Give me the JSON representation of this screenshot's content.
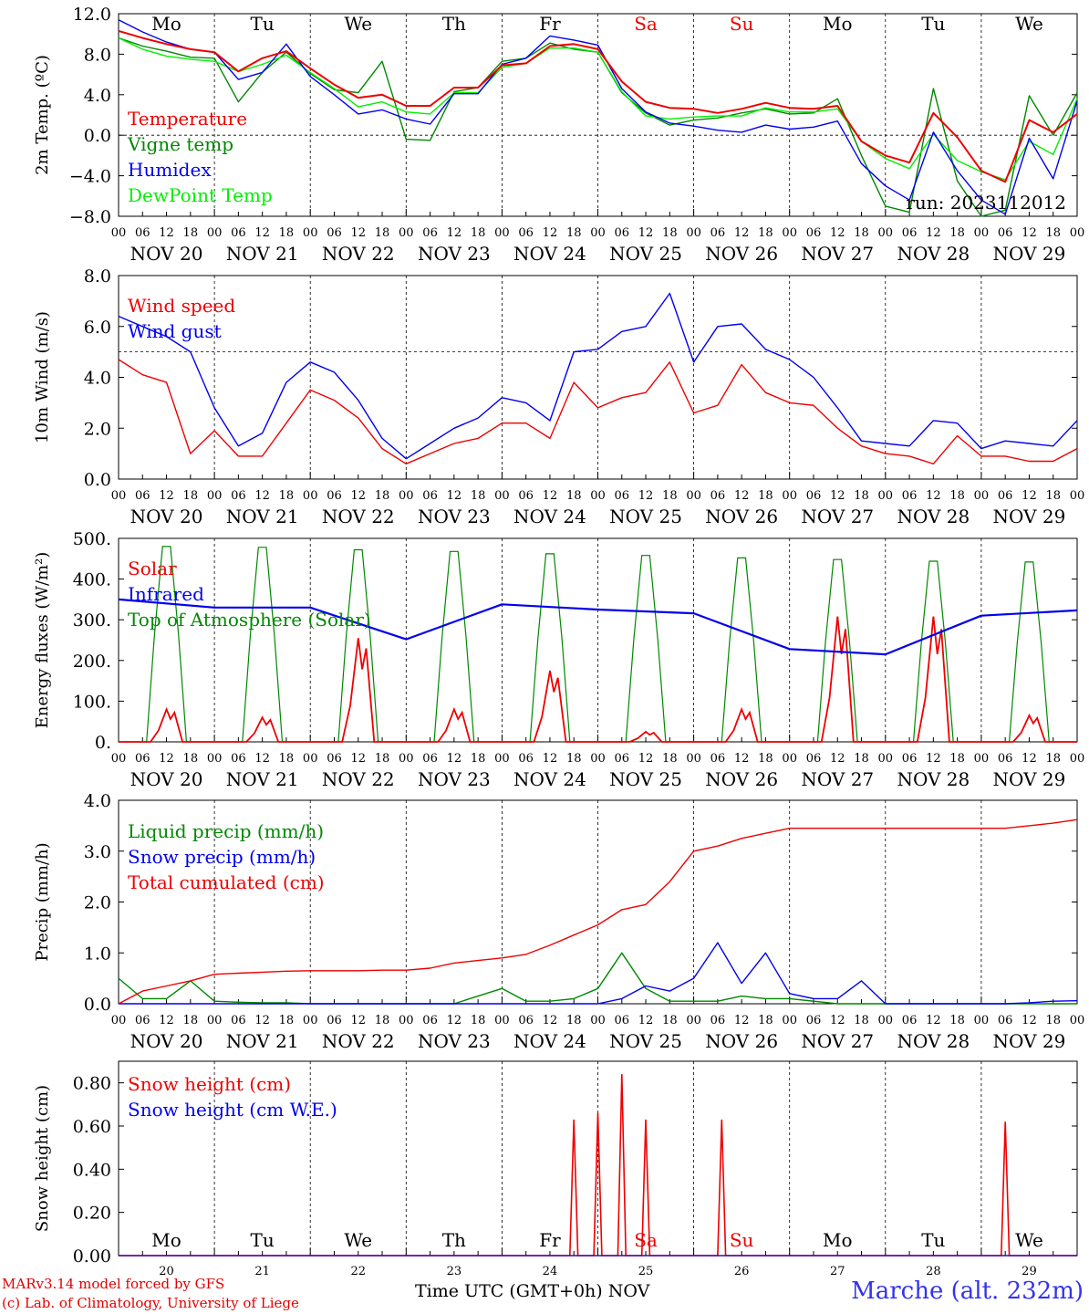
{
  "days": [
    {
      "dow": "Mo",
      "dow_color": "#000000",
      "label": "NOV 20",
      "num": "20"
    },
    {
      "dow": "Tu",
      "dow_color": "#000000",
      "label": "NOV 21",
      "num": "21"
    },
    {
      "dow": "We",
      "dow_color": "#000000",
      "label": "NOV 22",
      "num": "22"
    },
    {
      "dow": "Th",
      "dow_color": "#000000",
      "label": "NOV 23",
      "num": "23"
    },
    {
      "dow": "Fr",
      "dow_color": "#000000",
      "label": "NOV 24",
      "num": "24"
    },
    {
      "dow": "Sa",
      "dow_color": "#ee0000",
      "label": "NOV 25",
      "num": "25"
    },
    {
      "dow": "Su",
      "dow_color": "#ee0000",
      "label": "NOV 26",
      "num": "26"
    },
    {
      "dow": "Mo",
      "dow_color": "#000000",
      "label": "NOV 27",
      "num": "27"
    },
    {
      "dow": "Tu",
      "dow_color": "#000000",
      "label": "NOV 28",
      "num": "28"
    },
    {
      "dow": "We",
      "dow_color": "#000000",
      "label": "NOV 29",
      "num": "29"
    }
  ],
  "hour_ticks": [
    "00",
    "06",
    "12",
    "18"
  ],
  "hour_end": "00",
  "footer": {
    "credit_line1": "MARv3.14 model forced by GFS",
    "credit_line2": "(c) Lab. of Climatology, University of Liege",
    "x_title": "Time UTC (GMT+0h) NOV",
    "station": "Marche (alt. 232m)"
  },
  "chart_data": [
    {
      "type": "line",
      "ylabel": "2m Temp. (ºC)",
      "ylim": [
        -8,
        12
      ],
      "yticks": [
        "12.0",
        "8.0",
        "4.0",
        "0.0",
        "−4.0",
        "−8.0"
      ],
      "ytick_values": [
        12,
        8,
        4,
        0,
        -4,
        -8
      ],
      "refline": 0,
      "annotation": "run: 2023112012",
      "x_unit": "hours since NOV 20 00 UTC",
      "x": [
        0,
        6,
        12,
        18,
        24,
        30,
        36,
        42,
        48,
        54,
        60,
        66,
        72,
        78,
        84,
        90,
        96,
        102,
        108,
        114,
        120,
        126,
        132,
        138,
        144,
        150,
        156,
        162,
        168,
        174,
        180,
        186,
        192,
        198,
        204,
        210,
        216,
        222,
        228,
        234,
        240
      ],
      "series": [
        {
          "name": "Temperature",
          "color": "#ee0000",
          "values": [
            10.3,
            9.6,
            9.0,
            8.5,
            8.2,
            6.3,
            7.6,
            8.3,
            6.6,
            5.0,
            3.7,
            4.0,
            2.9,
            2.9,
            4.7,
            4.7,
            6.9,
            7.1,
            8.8,
            9.0,
            8.5,
            5.3,
            3.3,
            2.7,
            2.6,
            2.2,
            2.6,
            3.2,
            2.7,
            2.6,
            2.9,
            -0.6,
            -2.0,
            -2.7,
            2.2,
            -0.2,
            -3.5,
            -4.6,
            1.5,
            0.3,
            2.1
          ]
        },
        {
          "name": "Vigne temp",
          "color": "#008800",
          "values": [
            9.6,
            8.8,
            8.3,
            7.7,
            7.6,
            3.3,
            6.2,
            8.2,
            6.1,
            4.5,
            4.2,
            7.3,
            -0.4,
            -0.5,
            4.3,
            4.7,
            7.3,
            7.6,
            9.1,
            8.5,
            8.2,
            4.2,
            2.2,
            1.0,
            1.5,
            1.7,
            2.2,
            2.6,
            2.1,
            2.2,
            3.6,
            -2.0,
            -7.0,
            -7.6,
            4.6,
            -4.5,
            -8.0,
            -7.4,
            3.9,
            0.0,
            4.2
          ]
        },
        {
          "name": "Humidex",
          "color": "#0000ee",
          "values": [
            11.4,
            10.2,
            9.2,
            8.5,
            8.2,
            5.5,
            6.2,
            9.0,
            5.8,
            4.0,
            2.1,
            2.5,
            1.6,
            1.1,
            4.1,
            4.1,
            7.0,
            7.6,
            9.8,
            9.4,
            8.9,
            4.6,
            2.3,
            1.2,
            0.9,
            0.5,
            0.3,
            1.0,
            0.6,
            0.8,
            1.4,
            -2.8,
            -5.0,
            -6.4,
            0.3,
            -3.5,
            -6.4,
            -7.8,
            -0.3,
            -4.3,
            3.4
          ]
        },
        {
          "name": "DewPoint Temp",
          "color": "#00ee00",
          "values": [
            9.6,
            8.5,
            7.8,
            7.5,
            7.3,
            6.3,
            7.0,
            7.9,
            6.2,
            4.6,
            2.8,
            3.3,
            2.3,
            2.1,
            4.2,
            4.2,
            6.7,
            7.1,
            8.6,
            8.6,
            8.2,
            4.3,
            1.9,
            1.6,
            1.8,
            1.9,
            1.9,
            2.7,
            2.3,
            2.3,
            2.6,
            -0.6,
            -2.3,
            -3.3,
            0.1,
            -2.5,
            -3.6,
            -4.4,
            -0.6,
            -1.9,
            3.6
          ]
        }
      ]
    },
    {
      "type": "line",
      "ylabel": "10m Wind (m/s)",
      "ylim": [
        0,
        8
      ],
      "yticks": [
        "8.0",
        "6.0",
        "4.0",
        "2.0",
        "0.0"
      ],
      "ytick_values": [
        8,
        6,
        4,
        2,
        0
      ],
      "refline": 5,
      "x_unit": "hours since NOV 20 00 UTC",
      "x": [
        0,
        6,
        12,
        18,
        24,
        30,
        36,
        42,
        48,
        54,
        60,
        66,
        72,
        78,
        84,
        90,
        96,
        102,
        108,
        114,
        120,
        126,
        132,
        138,
        144,
        150,
        156,
        162,
        168,
        174,
        180,
        186,
        192,
        198,
        204,
        210,
        216,
        222,
        228,
        234,
        240
      ],
      "series": [
        {
          "name": "Wind speed",
          "color": "#ee0000",
          "values": [
            4.7,
            4.1,
            3.8,
            1.0,
            1.9,
            0.9,
            0.9,
            2.2,
            3.5,
            3.1,
            2.4,
            1.2,
            0.6,
            1.0,
            1.4,
            1.6,
            2.2,
            2.2,
            1.6,
            3.8,
            2.8,
            3.2,
            3.4,
            4.6,
            2.6,
            2.9,
            4.5,
            3.4,
            3.0,
            2.9,
            2.0,
            1.3,
            1.0,
            0.9,
            0.6,
            1.7,
            0.9,
            0.9,
            0.7,
            0.7,
            1.2
          ]
        },
        {
          "name": "Wind gust",
          "color": "#0000ee",
          "values": [
            6.4,
            6.0,
            5.6,
            5.0,
            2.8,
            1.3,
            1.8,
            3.8,
            4.6,
            4.2,
            3.1,
            1.6,
            0.8,
            1.4,
            2.0,
            2.4,
            3.2,
            3.0,
            2.3,
            5.0,
            5.1,
            5.8,
            6.0,
            7.3,
            4.6,
            6.0,
            6.1,
            5.1,
            4.7,
            4.0,
            2.8,
            1.5,
            1.4,
            1.3,
            2.3,
            2.2,
            1.2,
            1.5,
            1.4,
            1.3,
            2.3
          ]
        }
      ]
    },
    {
      "type": "line",
      "ylabel": "Energy fluxes (W/m²)",
      "ylim": [
        0,
        500
      ],
      "yticks": [
        "500.",
        "400.",
        "300.",
        "200.",
        "100.",
        "0."
      ],
      "ytick_values": [
        500,
        400,
        300,
        200,
        100,
        0
      ],
      "x_unit": "hours since NOV 20 00 UTC",
      "series": [
        {
          "name": "Solar",
          "color": "#ee0000",
          "x": [
            0,
            7,
            9,
            11,
            13,
            14,
            15,
            16,
            240
          ],
          "values": [
            0,
            0,
            20,
            50,
            80,
            40,
            0,
            0,
            0
          ],
          "daily_peaks": [
            80,
            60,
            255,
            80,
            175,
            25,
            80,
            308,
            308,
            65
          ]
        },
        {
          "name": "Infrared",
          "color": "#0000ee",
          "x": [
            0,
            24,
            48,
            72,
            96,
            120,
            144,
            168,
            192,
            216,
            240
          ],
          "values": [
            350,
            330,
            330,
            252,
            338,
            325,
            316,
            228,
            215,
            310,
            323
          ]
        },
        {
          "name": "Top of Atmosphere (Solar)",
          "color": "#008800",
          "daily_peaks": [
            480,
            478,
            472,
            468,
            462,
            458,
            452,
            448,
            444,
            442
          ]
        }
      ]
    },
    {
      "type": "line",
      "ylabel": "Precip (mm/h)",
      "ylim": [
        0,
        4
      ],
      "yticks": [
        "4.0",
        "3.0",
        "2.0",
        "1.0",
        "0.0"
      ],
      "ytick_values": [
        4,
        3,
        2,
        1,
        0
      ],
      "x_unit": "hours since NOV 20 00 UTC",
      "x": [
        0,
        6,
        12,
        18,
        24,
        30,
        36,
        42,
        48,
        54,
        60,
        66,
        72,
        78,
        84,
        90,
        96,
        102,
        108,
        114,
        120,
        126,
        132,
        138,
        144,
        150,
        156,
        162,
        168,
        174,
        180,
        186,
        192,
        198,
        204,
        210,
        216,
        222,
        228,
        234,
        240
      ],
      "series": [
        {
          "name": "Liquid precip (mm/h)",
          "color": "#008800",
          "values": [
            0.5,
            0.1,
            0.1,
            0.45,
            0.05,
            0.03,
            0.02,
            0.02,
            0.0,
            0.0,
            0.0,
            0.0,
            0.0,
            0.0,
            0.0,
            0.15,
            0.3,
            0.05,
            0.05,
            0.1,
            0.3,
            1.0,
            0.3,
            0.05,
            0.05,
            0.05,
            0.15,
            0.1,
            0.1,
            0.05,
            0.0,
            0.0,
            0.0,
            0.0,
            0.0,
            0.0,
            0.0,
            0.0,
            0.0,
            0.0,
            0.0
          ]
        },
        {
          "name": "Snow precip (mm/h)",
          "color": "#0000ee",
          "values": [
            0.0,
            0.0,
            0.0,
            0.0,
            0.0,
            0.0,
            0.0,
            0.0,
            0.0,
            0.0,
            0.0,
            0.0,
            0.0,
            0.0,
            0.0,
            0.0,
            0.0,
            0.0,
            0.0,
            0.0,
            0.0,
            0.1,
            0.35,
            0.25,
            0.5,
            1.2,
            0.4,
            1.0,
            0.2,
            0.1,
            0.1,
            0.45,
            0.0,
            0.0,
            0.0,
            0.0,
            0.0,
            0.0,
            0.02,
            0.05,
            0.06
          ]
        },
        {
          "name": "Total cumulated (cm)",
          "color": "#ee0000",
          "values": [
            0.0,
            0.25,
            0.35,
            0.45,
            0.58,
            0.6,
            0.62,
            0.64,
            0.65,
            0.65,
            0.65,
            0.66,
            0.66,
            0.7,
            0.8,
            0.85,
            0.9,
            0.97,
            1.15,
            1.35,
            1.55,
            1.85,
            1.95,
            2.4,
            3.0,
            3.1,
            3.25,
            3.35,
            3.45,
            3.45,
            3.45,
            3.45,
            3.45,
            3.45,
            3.45,
            3.45,
            3.45,
            3.45,
            3.5,
            3.55,
            3.62
          ]
        }
      ]
    },
    {
      "type": "line",
      "ylabel": "Snow height (cm)",
      "ylim": [
        0,
        0.9
      ],
      "yticks": [
        "0.80",
        "0.60",
        "0.40",
        "0.20",
        "0.00"
      ],
      "ytick_values": [
        0.8,
        0.6,
        0.4,
        0.2,
        0
      ],
      "x_unit": "hours since NOV 20 00 UTC",
      "series": [
        {
          "name": "Snow height (cm)",
          "color": "#ee0000",
          "spikes": [
            {
              "x": 114,
              "value": 0.63
            },
            {
              "x": 120,
              "value": 0.66
            },
            {
              "x": 126,
              "value": 0.84
            },
            {
              "x": 132,
              "value": 0.63
            },
            {
              "x": 151,
              "value": 0.63
            },
            {
              "x": 222,
              "value": 0.62
            }
          ]
        },
        {
          "name": "Snow height (cm W.E.)",
          "color": "#0000ee",
          "values": [
            0,
            0
          ]
        }
      ]
    }
  ]
}
